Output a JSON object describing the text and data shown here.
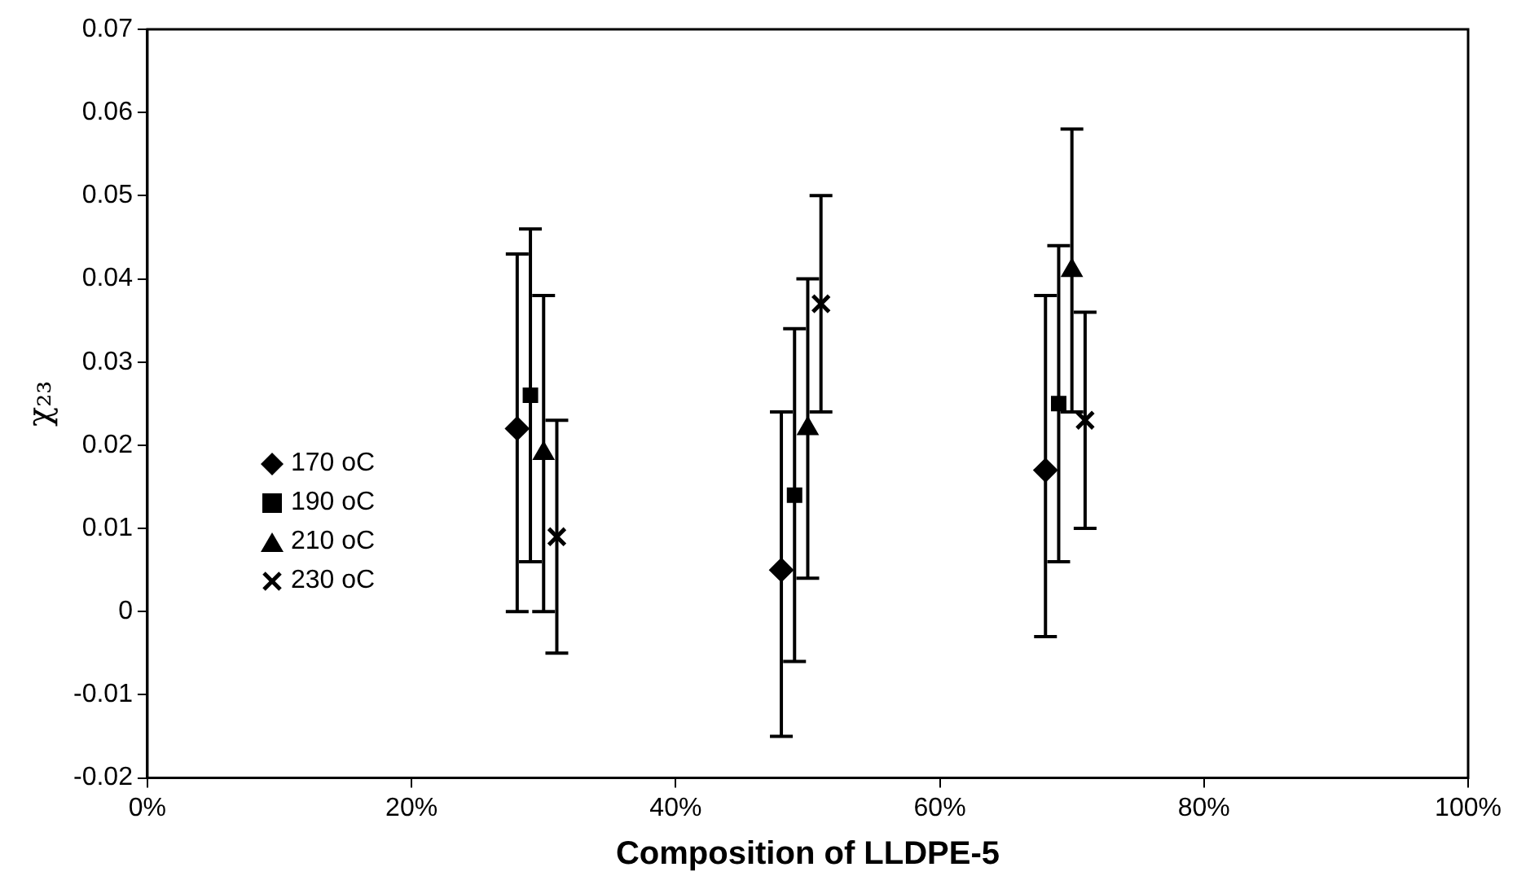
{
  "chart_data": {
    "type": "scatter",
    "xlabel": "Composition of LLDPE-5",
    "ylabel": "χ₂₃",
    "xlim": [
      0,
      100
    ],
    "xticks": [
      {
        "value": 0,
        "label": "0%"
      },
      {
        "value": 20,
        "label": "20%"
      },
      {
        "value": 40,
        "label": "40%"
      },
      {
        "value": 60,
        "label": "60%"
      },
      {
        "value": 80,
        "label": "80%"
      },
      {
        "value": 100,
        "label": "100%"
      }
    ],
    "ylim": [
      -0.02,
      0.07
    ],
    "yticks": [
      -0.02,
      -0.01,
      0,
      0.01,
      0.02,
      0.03,
      0.04,
      0.05,
      0.06,
      0.07
    ],
    "grid": false,
    "legend": "left",
    "series": [
      {
        "name": "170 oC",
        "color": "#000000",
        "marker": "diamond",
        "x": [
          28,
          48,
          68
        ],
        "values": [
          0.022,
          0.005,
          0.017
        ],
        "errors": [
          [
            0,
            0.043
          ],
          [
            -0.015,
            0.024
          ],
          [
            -0.003,
            0.038
          ]
        ]
      },
      {
        "name": "190 oC",
        "color": "#000000",
        "marker": "square",
        "x": [
          29,
          49,
          69
        ],
        "values": [
          0.026,
          0.014,
          0.025
        ],
        "errors": [
          [
            0.006,
            0.046
          ],
          [
            -0.006,
            0.034
          ],
          [
            0.006,
            0.044
          ]
        ]
      },
      {
        "name": "210 oC",
        "color": "#000000",
        "marker": "triangle",
        "x": [
          30,
          50,
          70
        ],
        "values": [
          0.019,
          0.022,
          0.041
        ],
        "errors": [
          [
            0,
            0.038
          ],
          [
            0.004,
            0.04
          ],
          [
            0.024,
            0.058
          ]
        ]
      },
      {
        "name": "230 oC",
        "color": "#000000",
        "marker": "cross",
        "x": [
          31,
          51,
          71
        ],
        "values": [
          0.009,
          0.037,
          0.023
        ],
        "errors": [
          [
            -0.005,
            0.023
          ],
          [
            0.024,
            0.05
          ],
          [
            0.01,
            0.036
          ]
        ]
      }
    ]
  }
}
